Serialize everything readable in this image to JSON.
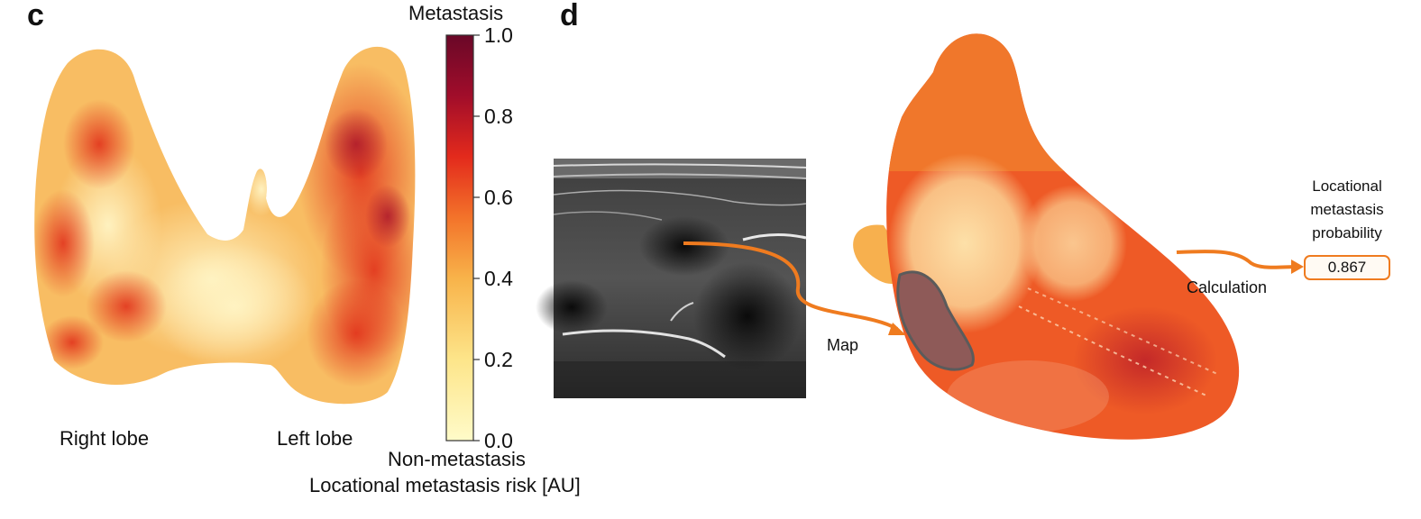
{
  "panel_c": {
    "letter": "c",
    "right_lobe_label": "Right lobe",
    "left_lobe_label": "Left lobe"
  },
  "colorbar": {
    "title": "Metastasis",
    "bottom_label": "Non-metastasis",
    "axis_label": "Locational metastasis risk [AU]",
    "ticks": [
      "1.0",
      "0.8",
      "0.6",
      "0.4",
      "0.2",
      "0.0"
    ],
    "range": [
      0.0,
      1.0
    ],
    "colors": [
      "#fffbc9",
      "#fde58a",
      "#f8b34a",
      "#f3732a",
      "#e32a1c",
      "#a10d2a",
      "#6a0828"
    ]
  },
  "panel_d": {
    "letter": "d",
    "map_label": "Map",
    "calculation_label": "Calculation",
    "probability_title_lines": [
      "Locational",
      "metastasis",
      "probability"
    ],
    "probability_value": "0.867",
    "arrow_color": "#ef7b1f"
  }
}
